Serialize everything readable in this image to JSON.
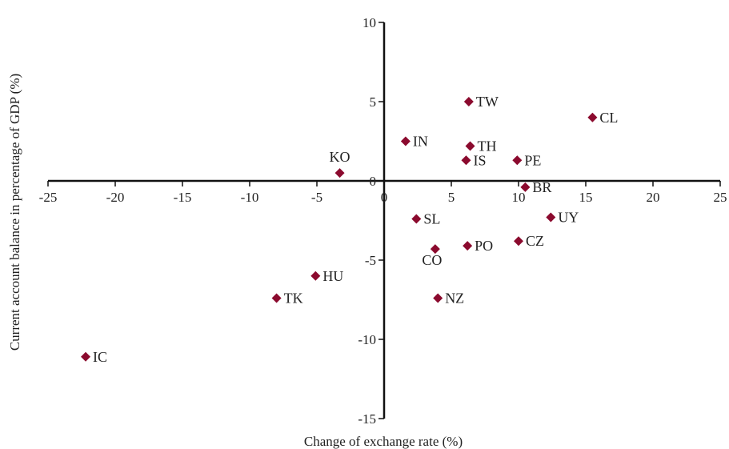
{
  "chart_data": {
    "type": "scatter",
    "title": "",
    "xlabel": "Change of exchange rate (%)",
    "ylabel": "Current account balance in percentage of GDP (%)",
    "xlim": [
      -25,
      25
    ],
    "ylim": [
      -15,
      10
    ],
    "xticks": [
      "-25",
      "-20",
      "-15",
      "-10",
      "-5",
      "0",
      "5",
      "10",
      "15",
      "20",
      "25"
    ],
    "yticks": [
      "10",
      "5",
      "0",
      "-5",
      "-10",
      "-15"
    ],
    "grid": false,
    "marker_color": "#8b0a2e",
    "axis_color": "#111111",
    "points": [
      {
        "label": "TW",
        "x": 6.3,
        "y": 5.0
      },
      {
        "label": "CL",
        "x": 15.5,
        "y": 4.0
      },
      {
        "label": "IN",
        "x": 1.6,
        "y": 2.5
      },
      {
        "label": "TH",
        "x": 6.4,
        "y": 2.2
      },
      {
        "label": "IS",
        "x": 6.1,
        "y": 1.3
      },
      {
        "label": "PE",
        "x": 9.9,
        "y": 1.3
      },
      {
        "label": "KO",
        "x": -3.3,
        "y": 0.5
      },
      {
        "label": "BR",
        "x": 10.5,
        "y": -0.4
      },
      {
        "label": "SL",
        "x": 2.4,
        "y": -2.4
      },
      {
        "label": "UY",
        "x": 12.4,
        "y": -2.3
      },
      {
        "label": "CZ",
        "x": 10.0,
        "y": -3.8
      },
      {
        "label": "PO",
        "x": 6.2,
        "y": -4.1
      },
      {
        "label": "CO",
        "x": 3.8,
        "y": -4.3
      },
      {
        "label": "HU",
        "x": -5.1,
        "y": -6.0
      },
      {
        "label": "TK",
        "x": -8.0,
        "y": -7.4
      },
      {
        "label": "NZ",
        "x": 4.0,
        "y": -7.4
      },
      {
        "label": "IC",
        "x": -22.2,
        "y": -11.1
      }
    ]
  }
}
